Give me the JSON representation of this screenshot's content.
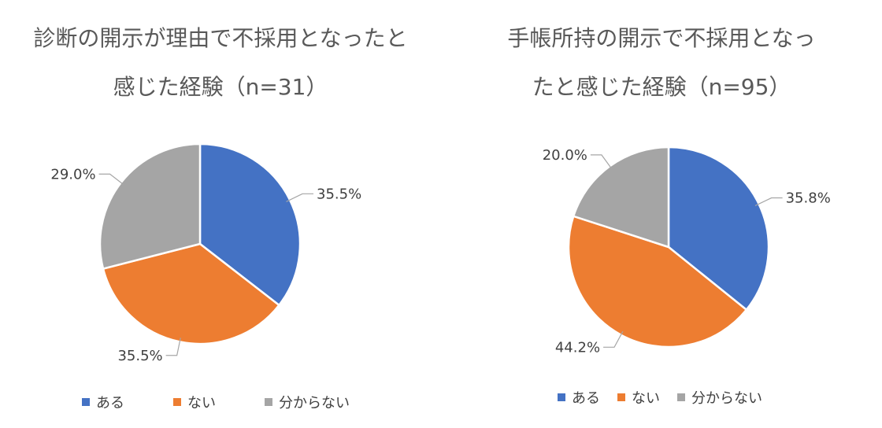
{
  "chart_data": [
    {
      "type": "pie",
      "title": "診断の開示が理由で不採用となったと\n感じた経験（n=31）",
      "categories": [
        "ある",
        "ない",
        "分からない"
      ],
      "values": [
        35.5,
        35.5,
        29.0
      ],
      "labels": [
        "35.5%",
        "35.5%",
        "29.0%"
      ],
      "colors": [
        "#4472C4",
        "#ED7D31",
        "#A5A5A5"
      ],
      "legend_position": "bottom"
    },
    {
      "type": "pie",
      "title": "手帳所持の開示で不採用となっ\nたと感じた経験（n=95）",
      "categories": [
        "ある",
        "ない",
        "分からない"
      ],
      "values": [
        35.8,
        44.2,
        20.0
      ],
      "labels": [
        "35.8%",
        "44.2%",
        "20.0%"
      ],
      "colors": [
        "#4472C4",
        "#ED7D31",
        "#A5A5A5"
      ],
      "legend_position": "bottom"
    }
  ]
}
